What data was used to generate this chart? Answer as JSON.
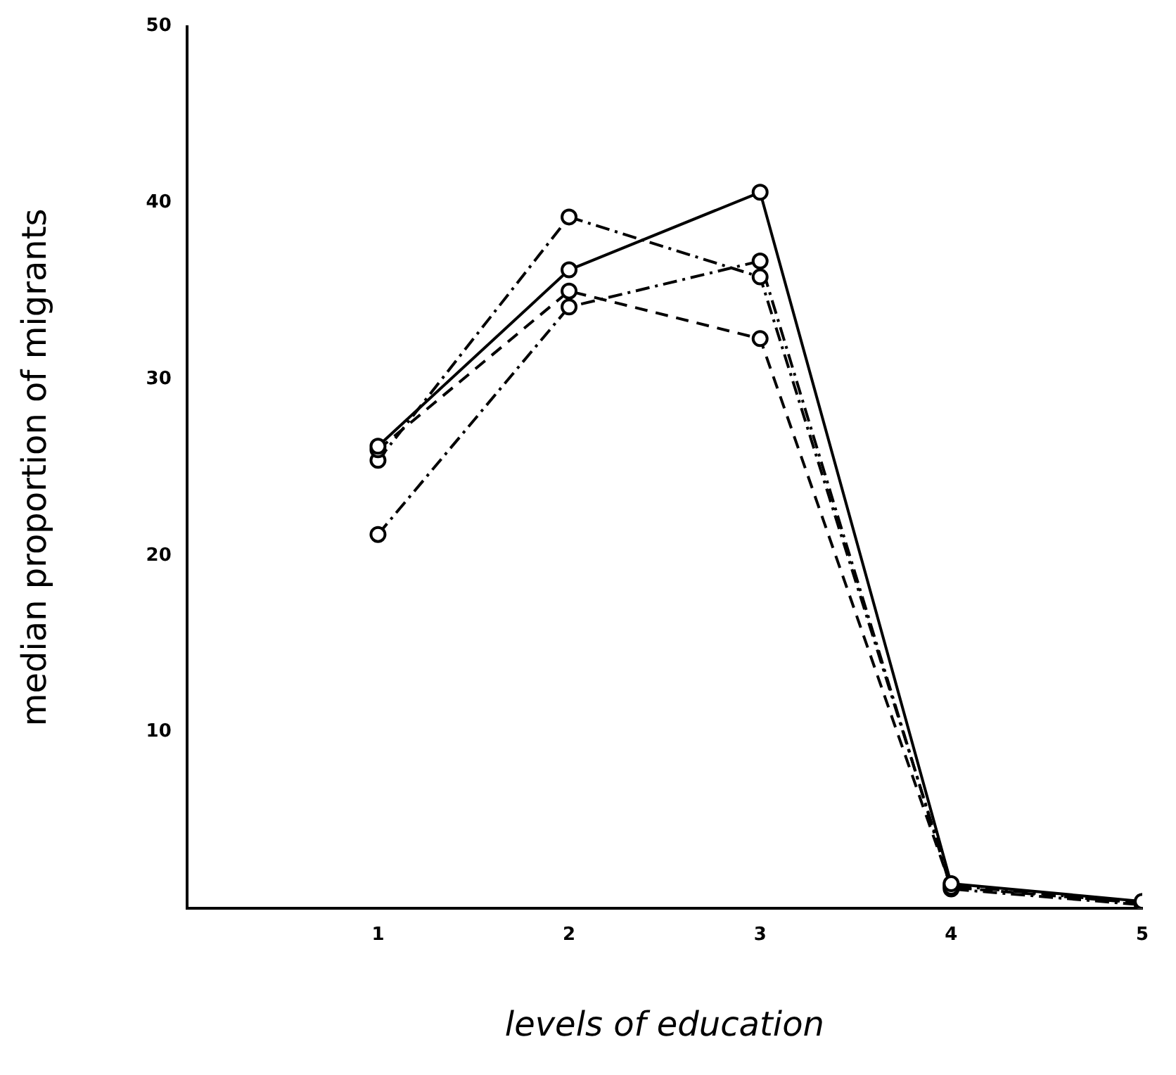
{
  "chart_data": {
    "type": "line",
    "xlabel": "levels of education",
    "ylabel": "median proportion of migrants",
    "x": [
      1,
      2,
      3,
      4,
      5
    ],
    "xlim": [
      0,
      5
    ],
    "xticks": [
      1,
      2,
      3,
      4,
      5
    ],
    "ylim": [
      0,
      50
    ],
    "yticks": [
      10,
      20,
      30,
      40,
      50
    ],
    "grid": false,
    "legend": false,
    "marker": "circle",
    "series": [
      {
        "color": "#000000",
        "line_style": "solid",
        "values": [
          26.2,
          36.2,
          40.6,
          1.4,
          0.4
        ]
      },
      {
        "color": "#000000",
        "line_style": "dashed",
        "values": [
          26.0,
          35.0,
          32.3,
          1.2,
          0.3
        ]
      },
      {
        "color": "#000000",
        "line_style": "dashdot",
        "values": [
          25.4,
          39.2,
          35.8,
          1.3,
          0.3
        ]
      },
      {
        "color": "#000000",
        "line_style": "dashdot",
        "values": [
          21.2,
          34.1,
          36.7,
          1.1,
          0.2
        ]
      }
    ]
  }
}
